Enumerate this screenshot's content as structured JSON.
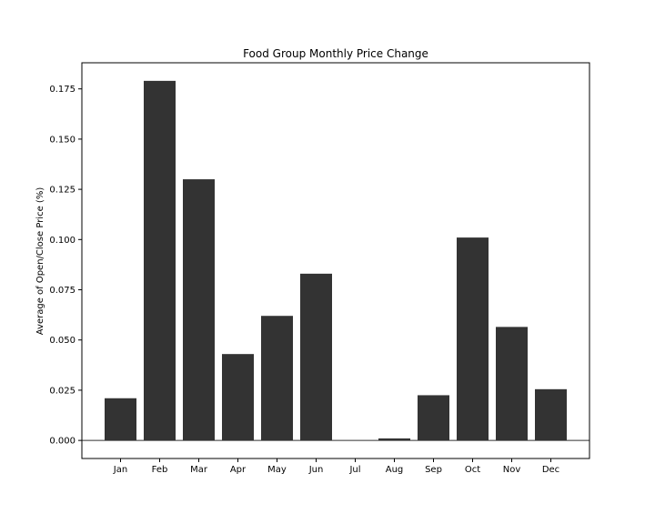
{
  "chart_data": {
    "type": "bar",
    "title": "Food Group Monthly Price Change",
    "xlabel": "",
    "ylabel": "Average of Open/Close Price (%)",
    "categories": [
      "Jan",
      "Feb",
      "Mar",
      "Apr",
      "May",
      "Jun",
      "Jul",
      "Aug",
      "Sep",
      "Oct",
      "Nov",
      "Dec"
    ],
    "values": [
      0.021,
      0.179,
      0.13,
      0.043,
      0.062,
      0.083,
      0.0,
      0.001,
      0.0225,
      0.101,
      0.0565,
      0.0255
    ],
    "ylim": [
      -0.009,
      0.188
    ],
    "yticks": [
      0.0,
      0.025,
      0.05,
      0.075,
      0.1,
      0.125,
      0.15,
      0.175
    ],
    "ytick_labels": [
      "0.000",
      "0.025",
      "0.050",
      "0.075",
      "0.100",
      "0.125",
      "0.150",
      "0.175"
    ],
    "bar_color": "#333333",
    "zero_line": true,
    "grid": false,
    "legend": "none"
  }
}
